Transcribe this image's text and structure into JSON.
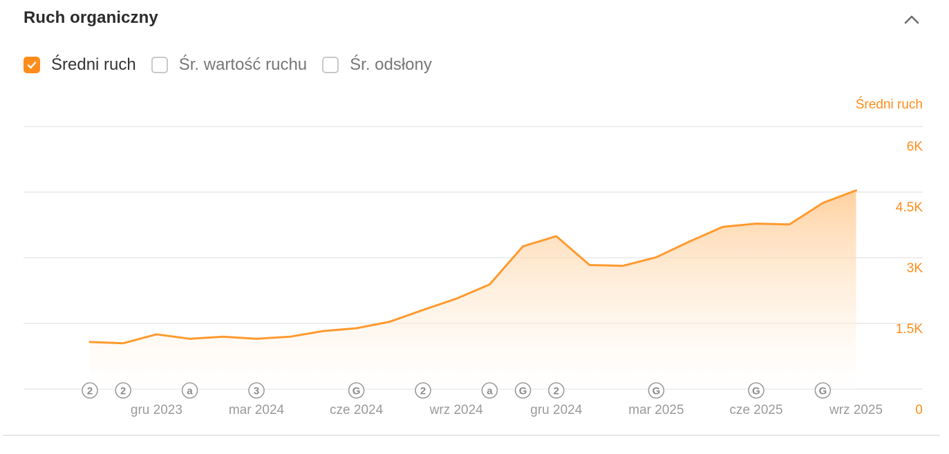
{
  "header": {
    "title": "Ruch organiczny"
  },
  "toggles": [
    {
      "label": "Średni ruch",
      "checked": true
    },
    {
      "label": "Śr. wartość ruchu",
      "checked": false
    },
    {
      "label": "Śr. odsłony",
      "checked": false
    }
  ],
  "icons": {
    "collapse": "chevron-up-icon",
    "check": "checkmark-icon"
  },
  "colors": {
    "accent": "#ff8c1a",
    "line": "#ff9a2e",
    "grid": "#e9e9e9",
    "tick_text": "#9a9a9a",
    "marker": "#9a9a9a"
  },
  "chart_data": {
    "type": "area",
    "ylabel": "Średni ruch",
    "ylim": [
      0,
      6000
    ],
    "y_ticks": [
      0,
      1500,
      3000,
      4500,
      6000
    ],
    "y_tick_labels": [
      "0",
      "1.5K",
      "3K",
      "4.5K",
      "6K"
    ],
    "grid": true,
    "x_tick_labels": [
      "gru 2023",
      "mar 2024",
      "cze 2024",
      "wrz 2024",
      "gru 2024",
      "mar 2025",
      "cze 2025",
      "wrz 2025"
    ],
    "x": [
      "paź 2023",
      "lis 2023",
      "gru 2023",
      "sty 2024",
      "lut 2024",
      "mar 2024",
      "kwi 2024",
      "maj 2024",
      "cze 2024",
      "lip 2024",
      "sie 2024",
      "wrz 2024",
      "paź 2024",
      "lis 2024",
      "gru 2024",
      "sty 2025",
      "lut 2025",
      "mar 2025",
      "kwi 2025",
      "maj 2025",
      "cze 2025",
      "lip 2025",
      "sie 2025",
      "wrz 2025"
    ],
    "series": [
      {
        "name": "Średni ruch",
        "values": [
          1160,
          1130,
          1350,
          1240,
          1290,
          1240,
          1290,
          1430,
          1500,
          1660,
          1950,
          2230,
          2580,
          3520,
          3770,
          3060,
          3040,
          3250,
          3640,
          4000,
          4080,
          4060,
          4590,
          4900
        ]
      }
    ],
    "markers": [
      {
        "x": "paź 2023",
        "label": "2"
      },
      {
        "x": "lis 2023",
        "label": "2"
      },
      {
        "x": "sty 2024",
        "label": "a"
      },
      {
        "x": "mar 2024",
        "label": "3"
      },
      {
        "x": "cze 2024",
        "label": "G"
      },
      {
        "x": "sie 2024",
        "label": "2"
      },
      {
        "x": "paź 2024",
        "label": "a"
      },
      {
        "x": "lis 2024",
        "label": "G"
      },
      {
        "x": "gru 2024",
        "label": "2"
      },
      {
        "x": "mar 2025",
        "label": "G"
      },
      {
        "x": "cze 2025",
        "label": "G"
      },
      {
        "x": "sie 2025",
        "label": "G"
      }
    ]
  }
}
